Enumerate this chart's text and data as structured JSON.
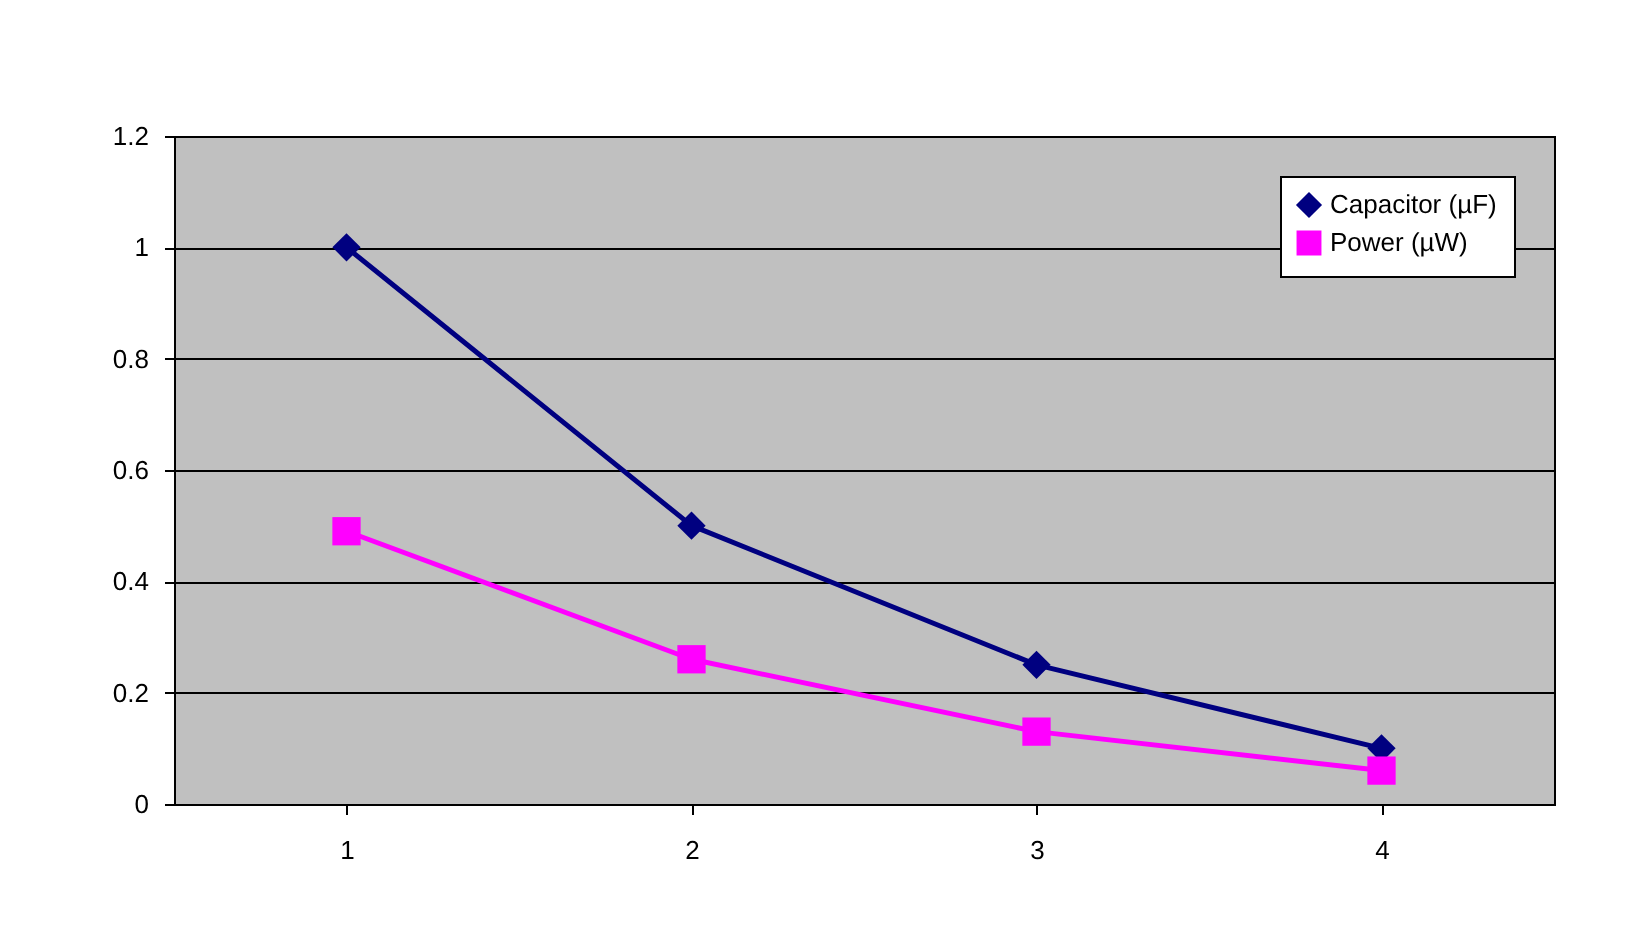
{
  "chart_data": {
    "type": "line",
    "categories": [
      "1",
      "2",
      "3",
      "4"
    ],
    "series": [
      {
        "name": "Capacitor (µF)",
        "color": "#000080",
        "marker": "diamond",
        "values": [
          1.0,
          0.5,
          0.25,
          0.1
        ]
      },
      {
        "name": "Power (µW)",
        "color": "#ff00ff",
        "marker": "square",
        "values": [
          0.49,
          0.26,
          0.13,
          0.06
        ]
      }
    ],
    "ylim": [
      0,
      1.2
    ],
    "yticks": [
      0,
      0.2,
      0.4,
      0.6,
      0.8,
      1,
      1.2
    ],
    "grid": "y",
    "legend": "top right",
    "line_style": "solid"
  }
}
